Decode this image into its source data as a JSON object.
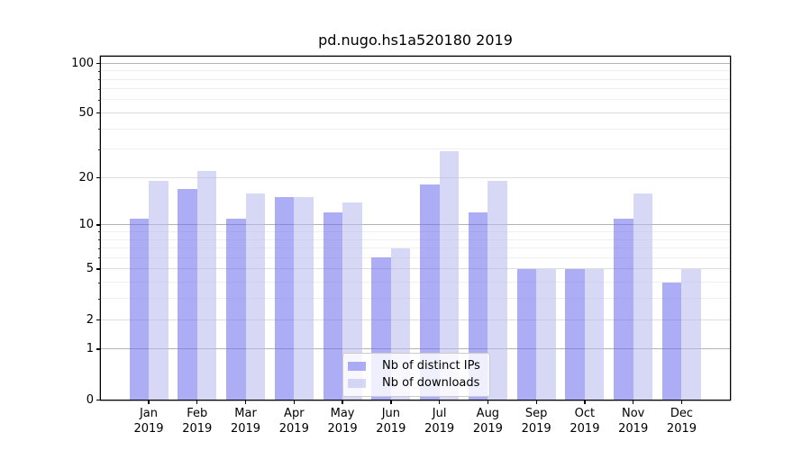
{
  "title": "pd.nugo.hs1a520180 2019",
  "chart_data": {
    "type": "bar",
    "title": "pd.nugo.hs1a520180 2019",
    "categories": [
      "Jan",
      "Feb",
      "Mar",
      "Apr",
      "May",
      "Jun",
      "Jul",
      "Aug",
      "Sep",
      "Oct",
      "Nov",
      "Dec"
    ],
    "category_year": "2019",
    "series": [
      {
        "name": "Nb of distinct IPs",
        "values": [
          11,
          17,
          11,
          15,
          12,
          6,
          18,
          12,
          5,
          5,
          11,
          4
        ],
        "color": "rgba(110,110,240,0.57)",
        "color_hex_on_white": "#a9a9f1"
      },
      {
        "name": "Nb of downloads",
        "values": [
          19,
          22,
          16,
          15,
          14,
          7,
          29,
          19,
          5,
          5,
          16,
          5
        ],
        "color": "rgba(185,185,240,0.57)",
        "color_hex_on_white": "#d8d8f7"
      }
    ],
    "xlabel": "",
    "ylabel": "",
    "yscale": "log1p",
    "ylim": [
      0,
      109.3
    ],
    "y_ticks_labeled": [
      0,
      1,
      2,
      5,
      10,
      20,
      50,
      100
    ],
    "y_gridlines_major": [
      1,
      10,
      100
    ],
    "y_gridlines_mid": [
      2,
      5,
      20,
      50
    ],
    "y_gridlines_minor": [
      3,
      4,
      6,
      7,
      8,
      9,
      30,
      40,
      60,
      70,
      80,
      90
    ],
    "grid": true,
    "legend_position": "lower center inside",
    "legend_entries": [
      "Nb of distinct IPs",
      "Nb of downloads"
    ],
    "frame_color": "#000000",
    "gridline_major_color": "#b3b3b3",
    "gridline_minor_color": "#efefef"
  }
}
